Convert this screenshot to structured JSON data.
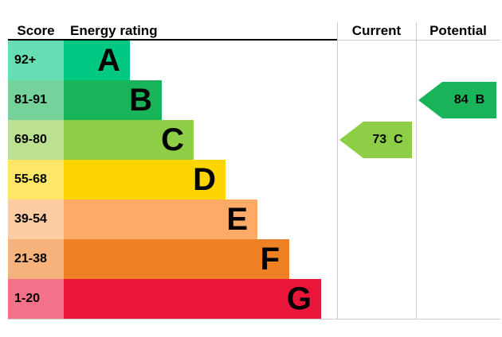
{
  "header": {
    "score": "Score",
    "energy_rating": "Energy rating",
    "current": "Current",
    "potential": "Potential"
  },
  "bands": [
    {
      "letter": "A",
      "score_range": "92+",
      "color": "#00c781",
      "tint": "#66ddb3"
    },
    {
      "letter": "B",
      "score_range": "81-91",
      "color": "#19b459",
      "tint": "#75d29b"
    },
    {
      "letter": "C",
      "score_range": "69-80",
      "color": "#8dce46",
      "tint": "#bbe190"
    },
    {
      "letter": "D",
      "score_range": "55-68",
      "color": "#ffd500",
      "tint": "#ffe666"
    },
    {
      "letter": "E",
      "score_range": "39-54",
      "color": "#fcaa65",
      "tint": "#fdcca3"
    },
    {
      "letter": "F",
      "score_range": "21-38",
      "color": "#ef8023",
      "tint": "#f5b37b"
    },
    {
      "letter": "G",
      "score_range": "1-20",
      "color": "#e9153b",
      "tint": "#f27389"
    }
  ],
  "current": {
    "value": "73",
    "band": "C",
    "color": "#8dce46"
  },
  "potential": {
    "value": "84",
    "band": "B",
    "color": "#19b459"
  },
  "chart_data": {
    "type": "table",
    "title": "Energy rating",
    "columns": [
      "Score",
      "Energy rating",
      "Current",
      "Potential"
    ],
    "bands": [
      {
        "band": "A",
        "score_range": "92+"
      },
      {
        "band": "B",
        "score_range": "81-91"
      },
      {
        "band": "C",
        "score_range": "69-80"
      },
      {
        "band": "D",
        "score_range": "55-68"
      },
      {
        "band": "E",
        "score_range": "39-54"
      },
      {
        "band": "F",
        "score_range": "21-38"
      },
      {
        "band": "G",
        "score_range": "1-20"
      }
    ],
    "current": {
      "score": 73,
      "band": "C"
    },
    "potential": {
      "score": 84,
      "band": "B"
    },
    "band_colors": {
      "A": "#00c781",
      "B": "#19b459",
      "C": "#8dce46",
      "D": "#ffd500",
      "E": "#fcaa65",
      "F": "#ef8023",
      "G": "#e9153b"
    }
  }
}
